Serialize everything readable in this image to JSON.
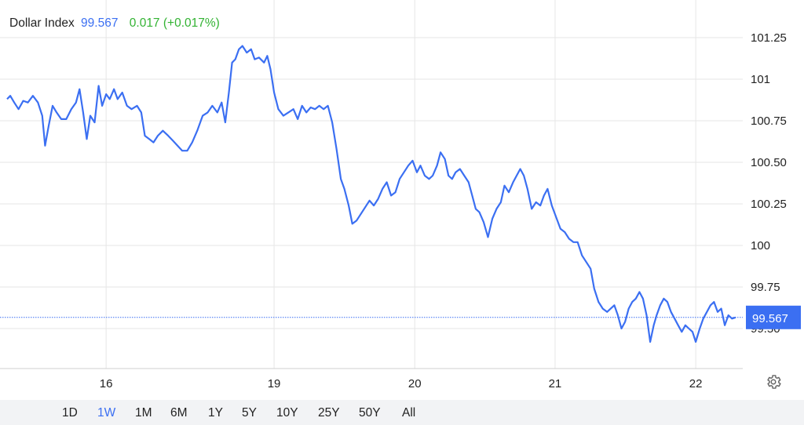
{
  "legend": {
    "name": "Dollar Index",
    "price": "99.567",
    "change": "0.017 (+0.017%)"
  },
  "colors": {
    "line": "#3b6ff2",
    "grid": "#e6e6e6",
    "change_positive": "#33b333",
    "range_bar_bg": "#f2f3f5"
  },
  "price_tag": "99.567",
  "ranges": {
    "selected": "1W",
    "items": [
      "1D",
      "1W",
      "1M",
      "6M",
      "1Y",
      "5Y",
      "10Y",
      "25Y",
      "50Y",
      "All"
    ]
  },
  "icons": {
    "settings": "gear-icon"
  },
  "chart_data": {
    "type": "line",
    "title": "",
    "xlabel": "",
    "ylabel": "",
    "x_ticks": [
      {
        "t": 2.76,
        "label": "16"
      },
      {
        "t": 7.44,
        "label": "19"
      },
      {
        "t": 11.36,
        "label": "20"
      },
      {
        "t": 15.27,
        "label": "21"
      },
      {
        "t": 19.19,
        "label": "22"
      }
    ],
    "x_range": [
      0,
      20.5
    ],
    "y_ticks": [
      "101.25",
      "101",
      "100.75",
      "100.50",
      "100.25",
      "100",
      "99.75",
      "99.50"
    ],
    "ylim": [
      99.3,
      101.3
    ],
    "grid": true,
    "current_value": 99.567,
    "series": [
      {
        "values": [
          [
            0.0,
            100.88
          ],
          [
            0.09,
            100.9
          ],
          [
            0.2,
            100.86
          ],
          [
            0.32,
            100.82
          ],
          [
            0.45,
            100.87
          ],
          [
            0.58,
            100.86
          ],
          [
            0.72,
            100.9
          ],
          [
            0.86,
            100.86
          ],
          [
            0.98,
            100.78
          ],
          [
            1.06,
            100.6
          ],
          [
            1.16,
            100.72
          ],
          [
            1.27,
            100.84
          ],
          [
            1.38,
            100.8
          ],
          [
            1.51,
            100.76
          ],
          [
            1.65,
            100.76
          ],
          [
            1.79,
            100.82
          ],
          [
            1.92,
            100.86
          ],
          [
            2.02,
            100.94
          ],
          [
            2.12,
            100.8
          ],
          [
            2.22,
            100.64
          ],
          [
            2.32,
            100.78
          ],
          [
            2.44,
            100.74
          ],
          [
            2.55,
            100.96
          ],
          [
            2.65,
            100.84
          ],
          [
            2.76,
            100.91
          ],
          [
            2.86,
            100.88
          ],
          [
            2.98,
            100.94
          ],
          [
            3.08,
            100.88
          ],
          [
            3.21,
            100.92
          ],
          [
            3.34,
            100.84
          ],
          [
            3.47,
            100.82
          ],
          [
            3.62,
            100.84
          ],
          [
            3.74,
            100.8
          ],
          [
            3.84,
            100.66
          ],
          [
            3.96,
            100.64
          ],
          [
            4.08,
            100.62
          ],
          [
            4.2,
            100.66
          ],
          [
            4.34,
            100.69
          ],
          [
            4.49,
            100.66
          ],
          [
            4.62,
            100.63
          ],
          [
            4.75,
            100.6
          ],
          [
            4.88,
            100.57
          ],
          [
            5.02,
            100.57
          ],
          [
            5.16,
            100.62
          ],
          [
            5.3,
            100.69
          ],
          [
            5.45,
            100.78
          ],
          [
            5.59,
            100.8
          ],
          [
            5.72,
            100.84
          ],
          [
            5.86,
            100.8
          ],
          [
            5.98,
            100.86
          ],
          [
            6.08,
            100.74
          ],
          [
            6.18,
            100.92
          ],
          [
            6.27,
            101.1
          ],
          [
            6.36,
            101.12
          ],
          [
            6.46,
            101.18
          ],
          [
            6.56,
            101.2
          ],
          [
            6.68,
            101.16
          ],
          [
            6.8,
            101.18
          ],
          [
            6.9,
            101.12
          ],
          [
            7.02,
            101.13
          ],
          [
            7.16,
            101.1
          ],
          [
            7.25,
            101.14
          ],
          [
            7.34,
            101.06
          ],
          [
            7.44,
            100.92
          ],
          [
            7.56,
            100.82
          ],
          [
            7.7,
            100.78
          ],
          [
            7.84,
            100.8
          ],
          [
            7.98,
            100.82
          ],
          [
            8.1,
            100.76
          ],
          [
            8.22,
            100.84
          ],
          [
            8.34,
            100.8
          ],
          [
            8.46,
            100.83
          ],
          [
            8.58,
            100.82
          ],
          [
            8.7,
            100.84
          ],
          [
            8.82,
            100.82
          ],
          [
            8.94,
            100.84
          ],
          [
            9.06,
            100.74
          ],
          [
            9.18,
            100.58
          ],
          [
            9.3,
            100.4
          ],
          [
            9.4,
            100.34
          ],
          [
            9.52,
            100.24
          ],
          [
            9.62,
            100.13
          ],
          [
            9.74,
            100.15
          ],
          [
            9.86,
            100.19
          ],
          [
            9.98,
            100.23
          ],
          [
            10.1,
            100.27
          ],
          [
            10.22,
            100.24
          ],
          [
            10.34,
            100.28
          ],
          [
            10.46,
            100.34
          ],
          [
            10.58,
            100.38
          ],
          [
            10.7,
            100.3
          ],
          [
            10.82,
            100.32
          ],
          [
            10.94,
            100.4
          ],
          [
            11.06,
            100.44
          ],
          [
            11.18,
            100.48
          ],
          [
            11.3,
            100.51
          ],
          [
            11.42,
            100.44
          ],
          [
            11.52,
            100.48
          ],
          [
            11.64,
            100.42
          ],
          [
            11.76,
            100.4
          ],
          [
            11.86,
            100.42
          ],
          [
            11.98,
            100.48
          ],
          [
            12.08,
            100.56
          ],
          [
            12.2,
            100.52
          ],
          [
            12.3,
            100.42
          ],
          [
            12.4,
            100.4
          ],
          [
            12.5,
            100.44
          ],
          [
            12.62,
            100.46
          ],
          [
            12.74,
            100.42
          ],
          [
            12.86,
            100.38
          ],
          [
            12.96,
            100.3
          ],
          [
            13.06,
            100.22
          ],
          [
            13.16,
            100.2
          ],
          [
            13.28,
            100.14
          ],
          [
            13.4,
            100.05
          ],
          [
            13.52,
            100.16
          ],
          [
            13.64,
            100.22
          ],
          [
            13.76,
            100.26
          ],
          [
            13.86,
            100.36
          ],
          [
            13.98,
            100.32
          ],
          [
            14.1,
            100.38
          ],
          [
            14.2,
            100.42
          ],
          [
            14.3,
            100.46
          ],
          [
            14.4,
            100.42
          ],
          [
            14.5,
            100.34
          ],
          [
            14.62,
            100.22
          ],
          [
            14.74,
            100.26
          ],
          [
            14.86,
            100.24
          ],
          [
            14.96,
            100.3
          ],
          [
            15.06,
            100.34
          ],
          [
            15.18,
            100.24
          ],
          [
            15.3,
            100.17
          ],
          [
            15.42,
            100.1
          ],
          [
            15.54,
            100.08
          ],
          [
            15.66,
            100.04
          ],
          [
            15.78,
            100.02
          ],
          [
            15.9,
            100.02
          ],
          [
            16.02,
            99.94
          ],
          [
            16.14,
            99.9
          ],
          [
            16.26,
            99.86
          ],
          [
            16.36,
            99.74
          ],
          [
            16.48,
            99.66
          ],
          [
            16.6,
            99.62
          ],
          [
            16.72,
            99.6
          ],
          [
            16.82,
            99.62
          ],
          [
            16.92,
            99.64
          ],
          [
            17.02,
            99.58
          ],
          [
            17.12,
            99.5
          ],
          [
            17.22,
            99.54
          ],
          [
            17.32,
            99.62
          ],
          [
            17.42,
            99.66
          ],
          [
            17.52,
            99.68
          ],
          [
            17.62,
            99.72
          ],
          [
            17.72,
            99.68
          ],
          [
            17.82,
            99.58
          ],
          [
            17.92,
            99.42
          ],
          [
            18.02,
            99.52
          ],
          [
            18.1,
            99.58
          ],
          [
            18.2,
            99.64
          ],
          [
            18.3,
            99.68
          ],
          [
            18.4,
            99.66
          ],
          [
            18.5,
            99.6
          ],
          [
            18.6,
            99.56
          ],
          [
            18.7,
            99.52
          ],
          [
            18.8,
            99.48
          ],
          [
            18.9,
            99.52
          ],
          [
            19.0,
            99.5
          ],
          [
            19.1,
            99.48
          ],
          [
            19.19,
            99.42
          ],
          [
            19.3,
            99.5
          ],
          [
            19.4,
            99.56
          ],
          [
            19.5,
            99.6
          ],
          [
            19.6,
            99.64
          ],
          [
            19.7,
            99.66
          ],
          [
            19.8,
            99.6
          ],
          [
            19.9,
            99.62
          ],
          [
            20.0,
            99.52
          ],
          [
            20.1,
            99.58
          ],
          [
            20.2,
            99.56
          ],
          [
            20.3,
            99.567
          ]
        ]
      }
    ]
  }
}
